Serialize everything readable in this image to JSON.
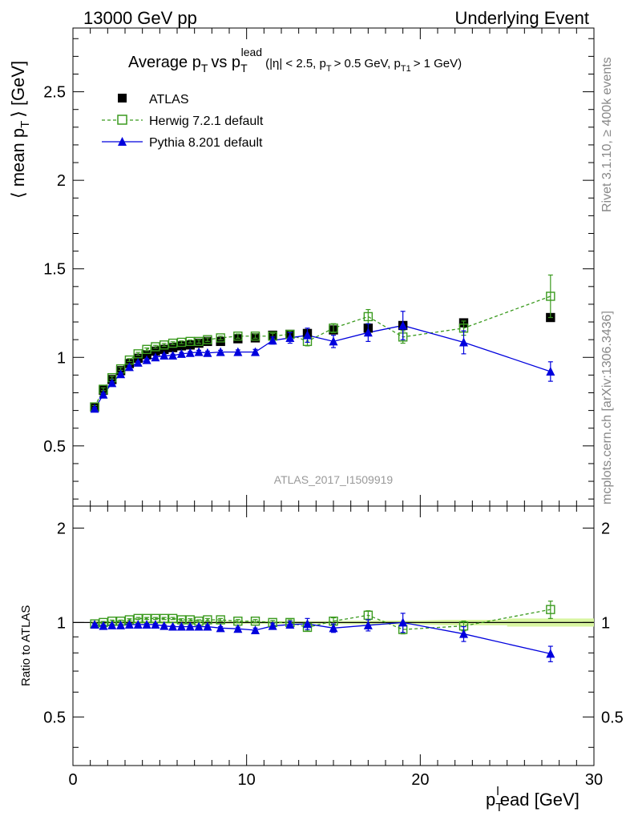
{
  "header": {
    "left": "13000 GeV pp",
    "right": "Underlying Event"
  },
  "title": {
    "main": "Average p",
    "main_sub": "T",
    "vs": "vs p",
    "vs_sub": "T",
    "vs_sup": "lead",
    "cuts": "(|η| < 2.5, p",
    "cuts_sub1": "T",
    "cuts_mid": "> 0.5 GeV, p",
    "cuts_sub2": "T1",
    "cuts_end": "> 1 GeV)"
  },
  "ylabel": "⟨ mean p",
  "ylabel_sub": "T",
  "ylabel_end": "⟩ [GeV]",
  "ratio_ylabel": "Ratio to ATLAS",
  "xlabel": "p",
  "xlabel_sub": "T",
  "xlabel_sup": "l",
  "xlabel_end": "ead [GeV]",
  "watermark": "ATLAS_2017_I1509919",
  "side_top": "Rivet 3.1.10, ≥ 400k events",
  "side_bottom": "mcplots.cern.ch [arXiv:1306.3436]",
  "colors": {
    "atlas": "#000000",
    "herwig": "#3a9a1e",
    "pythia": "#0000dd",
    "band": "#d8f5a0"
  },
  "chart_data": {
    "type": "line",
    "xlim": [
      0,
      30
    ],
    "ylim": [
      0.16,
      2.86
    ],
    "ratio_ylim": [
      0.35,
      2.35
    ],
    "x_ticks": [
      "0",
      "10",
      "20",
      "30"
    ],
    "y_ticks": [
      "0.5",
      "1",
      "1.5",
      "2",
      "2.5"
    ],
    "ratio_y_ticks": [
      "0.5",
      "1",
      "2"
    ],
    "legend": [
      "ATLAS",
      "Herwig 7.2.1 default",
      "Pythia 8.201 default"
    ],
    "legend_position": "top-left",
    "x": [
      1.25,
      1.75,
      2.25,
      2.75,
      3.25,
      3.75,
      4.25,
      4.75,
      5.25,
      5.75,
      6.25,
      6.75,
      7.25,
      7.75,
      8.5,
      9.5,
      10.5,
      11.5,
      12.5,
      13.5,
      15,
      17,
      19,
      22.5,
      27.5
    ],
    "series": [
      {
        "name": "ATLAS",
        "values": [
          0.72,
          0.815,
          0.875,
          0.925,
          0.965,
          0.995,
          1.015,
          1.035,
          1.045,
          1.055,
          1.065,
          1.07,
          1.08,
          1.09,
          1.09,
          1.105,
          1.11,
          1.125,
          1.13,
          1.135,
          1.155,
          1.165,
          1.18,
          1.195,
          1.225
        ],
        "errors": [
          0.01,
          0.01,
          0.01,
          0.01,
          0.01,
          0.01,
          0.01,
          0.01,
          0.01,
          0.01,
          0.01,
          0.01,
          0.01,
          0.01,
          0.01,
          0.01,
          0.01,
          0.01,
          0.01,
          0.01,
          0.01,
          0.01,
          0.015,
          0.015,
          0.02
        ]
      },
      {
        "name": "Herwig 7.2.1 default",
        "values": [
          0.72,
          0.82,
          0.885,
          0.935,
          0.985,
          1.02,
          1.045,
          1.06,
          1.07,
          1.08,
          1.085,
          1.09,
          1.09,
          1.1,
          1.11,
          1.12,
          1.12,
          1.12,
          1.13,
          1.09,
          1.165,
          1.23,
          1.115,
          1.165,
          1.345
        ],
        "errors": [
          0.008,
          0.008,
          0.008,
          0.008,
          0.008,
          0.008,
          0.008,
          0.008,
          0.008,
          0.008,
          0.008,
          0.008,
          0.01,
          0.01,
          0.01,
          0.012,
          0.012,
          0.015,
          0.02,
          0.025,
          0.025,
          0.04,
          0.035,
          0.04,
          0.12
        ]
      },
      {
        "name": "Pythia 8.201 default",
        "values": [
          0.71,
          0.79,
          0.855,
          0.905,
          0.945,
          0.97,
          0.985,
          1.0,
          1.01,
          1.01,
          1.02,
          1.025,
          1.03,
          1.025,
          1.03,
          1.03,
          1.03,
          1.095,
          1.11,
          1.125,
          1.09,
          1.14,
          1.18,
          1.085,
          0.92
        ],
        "errors": [
          0.008,
          0.008,
          0.008,
          0.008,
          0.008,
          0.008,
          0.008,
          0.008,
          0.008,
          0.008,
          0.008,
          0.008,
          0.01,
          0.01,
          0.01,
          0.012,
          0.015,
          0.02,
          0.03,
          0.04,
          0.035,
          0.05,
          0.08,
          0.065,
          0.055
        ]
      }
    ],
    "ratio": {
      "band_halfwidth": [
        0.01,
        0.01,
        0.01,
        0.01,
        0.01,
        0.01,
        0.01,
        0.01,
        0.01,
        0.01,
        0.01,
        0.01,
        0.01,
        0.01,
        0.01,
        0.01,
        0.01,
        0.01,
        0.01,
        0.01,
        0.01,
        0.015,
        0.015,
        0.02,
        0.03
      ],
      "herwig": [
        0.99,
        1.0,
        1.01,
        1.01,
        1.02,
        1.03,
        1.03,
        1.03,
        1.03,
        1.03,
        1.02,
        1.02,
        1.01,
        1.02,
        1.02,
        1.01,
        1.01,
        1.0,
        1.0,
        0.965,
        1.01,
        1.055,
        0.95,
        0.975,
        1.1
      ],
      "herwig_err": [
        0.008,
        0.008,
        0.008,
        0.008,
        0.008,
        0.008,
        0.008,
        0.008,
        0.008,
        0.008,
        0.008,
        0.008,
        0.01,
        0.01,
        0.01,
        0.012,
        0.012,
        0.015,
        0.02,
        0.025,
        0.025,
        0.035,
        0.03,
        0.035,
        0.07
      ],
      "pythia": [
        0.985,
        0.975,
        0.98,
        0.98,
        0.985,
        0.985,
        0.985,
        0.985,
        0.975,
        0.97,
        0.97,
        0.97,
        0.97,
        0.97,
        0.96,
        0.955,
        0.945,
        0.975,
        0.985,
        0.99,
        0.96,
        0.98,
        1.0,
        0.92,
        0.795
      ],
      "pythia_err": [
        0.008,
        0.008,
        0.008,
        0.008,
        0.008,
        0.008,
        0.008,
        0.008,
        0.008,
        0.008,
        0.008,
        0.008,
        0.01,
        0.01,
        0.01,
        0.012,
        0.015,
        0.02,
        0.025,
        0.04,
        0.03,
        0.04,
        0.07,
        0.05,
        0.045
      ]
    }
  }
}
